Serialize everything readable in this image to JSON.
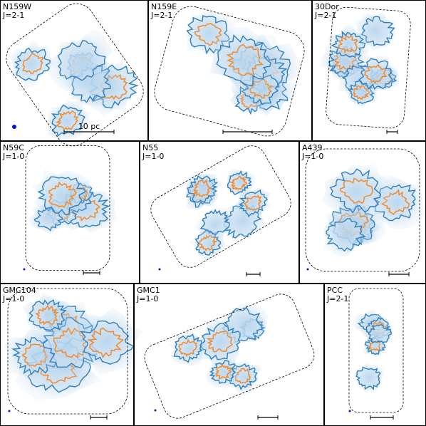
{
  "panels": [
    {
      "name": "N159W",
      "transition": "J=2-1",
      "scale_label": "10 pc"
    },
    {
      "name": "N159E",
      "transition": "J=2-1"
    },
    {
      "name": "30Dor",
      "transition": "J=2-1"
    },
    {
      "name": "N59C",
      "transition": "J=1-0"
    },
    {
      "name": "N55",
      "transition": "J=1-0"
    },
    {
      "name": "A439",
      "transition": "J=1-0"
    },
    {
      "name": "GMC104",
      "transition": "J=1-0"
    },
    {
      "name": "GMC1",
      "transition": "J=1-0"
    },
    {
      "name": "PCC",
      "transition": "J=2-1"
    }
  ]
}
